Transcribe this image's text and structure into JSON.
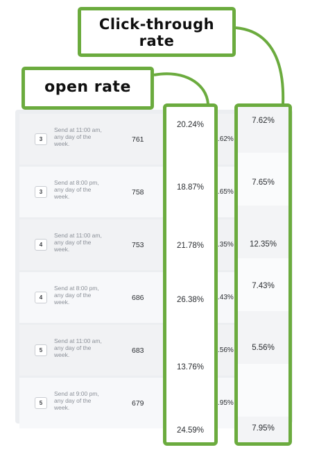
{
  "callouts": {
    "click_through_line1": "Click-through",
    "click_through_line2": "rate",
    "open_rate": "open rate"
  },
  "rows": [
    {
      "day": "3",
      "send": "Send at 11:00 am, any day of the week.",
      "count": "761",
      "peek": ".62%"
    },
    {
      "day": "3",
      "send": "Send at 8:00 pm, any day of the week.",
      "count": "758",
      "peek": ".65%"
    },
    {
      "day": "4",
      "send": "Send at 11:00 am, any day of the week.",
      "count": "753",
      "peek": ".35%"
    },
    {
      "day": "4",
      "send": "Send at 8:00 pm, any day of the week.",
      "count": "686",
      "peek": ".43%"
    },
    {
      "day": "5",
      "send": "Send at 11:00 am, any day of the week.",
      "count": "683",
      "peek": ".56%"
    },
    {
      "day": "5",
      "send": "Send at 9:00 pm, any day of the week.",
      "count": "679",
      "peek": ".95%"
    }
  ],
  "open_rates": [
    "20.24%",
    "18.87%",
    "21.78%",
    "26.38%",
    "13.76%",
    "24.59%"
  ],
  "click_through_rates": [
    "7.62%",
    "7.65%",
    "12.35%",
    "7.43%",
    "5.56%",
    "7.95%"
  ],
  "colors": {
    "highlight_green": "#6bab3e"
  }
}
